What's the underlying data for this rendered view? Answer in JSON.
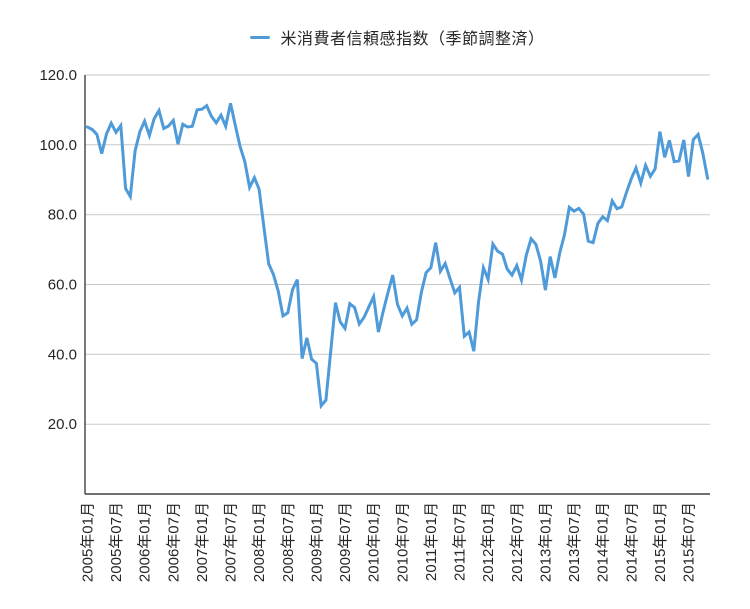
{
  "legend": {
    "label": "米消費者信頼感指数（季節調整済）"
  },
  "colors": {
    "line": "#4f9ad9",
    "grid": "#c9c9c9",
    "axis": "#404040",
    "text": "#262626"
  },
  "chart_data": {
    "type": "line",
    "series_name": "米消費者信頼感指数（季節調整済）",
    "x_start": "2005年01月",
    "x_interval": "monthly",
    "x_tick_every": 6,
    "x_tick_labels": [
      "2005年01月",
      "2005年07月",
      "2006年01月",
      "2006年07月",
      "2007年01月",
      "2007年07月",
      "2008年01月",
      "2008年07月",
      "2009年01月",
      "2009年07月",
      "2010年01月",
      "2010年07月",
      "2011年01月",
      "2011年07月",
      "2012年01月",
      "2012年07月",
      "2013年01月",
      "2013年07月",
      "2014年01月",
      "2014年07月",
      "2015年01月",
      "2015年07月"
    ],
    "values": [
      105.1,
      104.4,
      103.0,
      97.5,
      103.1,
      106.2,
      103.6,
      105.5,
      87.5,
      85.2,
      98.3,
      103.8,
      106.8,
      102.7,
      107.5,
      109.8,
      104.7,
      105.4,
      107.0,
      100.2,
      105.9,
      105.1,
      105.3,
      110.0,
      110.2,
      111.2,
      108.2,
      106.3,
      108.5,
      105.3,
      111.9,
      105.6,
      99.5,
      95.2,
      87.8,
      90.6,
      87.3,
      76.4,
      65.9,
      62.8,
      58.1,
      51.0,
      51.9,
      58.5,
      61.4,
      38.8,
      44.7,
      38.6,
      37.4,
      25.3,
      26.9,
      40.8,
      54.8,
      49.3,
      47.4,
      54.5,
      53.4,
      48.7,
      50.6,
      53.6,
      56.5,
      46.4,
      52.3,
      57.7,
      62.7,
      54.3,
      51.0,
      53.2,
      48.6,
      49.9,
      57.8,
      63.4,
      64.8,
      72.0,
      63.8,
      66.0,
      61.7,
      57.6,
      59.2,
      45.2,
      46.4,
      40.9,
      55.2,
      64.8,
      61.5,
      71.6,
      69.5,
      68.7,
      64.4,
      62.7,
      65.4,
      61.3,
      68.4,
      73.1,
      71.5,
      66.7,
      58.4,
      68.0,
      61.9,
      69.0,
      74.3,
      82.1,
      81.0,
      81.8,
      80.2,
      72.4,
      72.0,
      77.5,
      79.4,
      78.3,
      83.9,
      81.7,
      82.2,
      86.4,
      90.3,
      93.4,
      89.0,
      94.1,
      91.0,
      93.1,
      103.8,
      96.4,
      101.3,
      95.2,
      95.4,
      101.4,
      90.9,
      101.5,
      103.0,
      97.6,
      90.4
    ],
    "ylim": [
      0,
      120
    ],
    "y_ticks": [
      20,
      40,
      60,
      80,
      100,
      120
    ],
    "y_tick_labels": [
      "20.0",
      "40.0",
      "60.0",
      "80.0",
      "100.0",
      "120.0"
    ],
    "grid": true,
    "legend_position": "top-center"
  }
}
